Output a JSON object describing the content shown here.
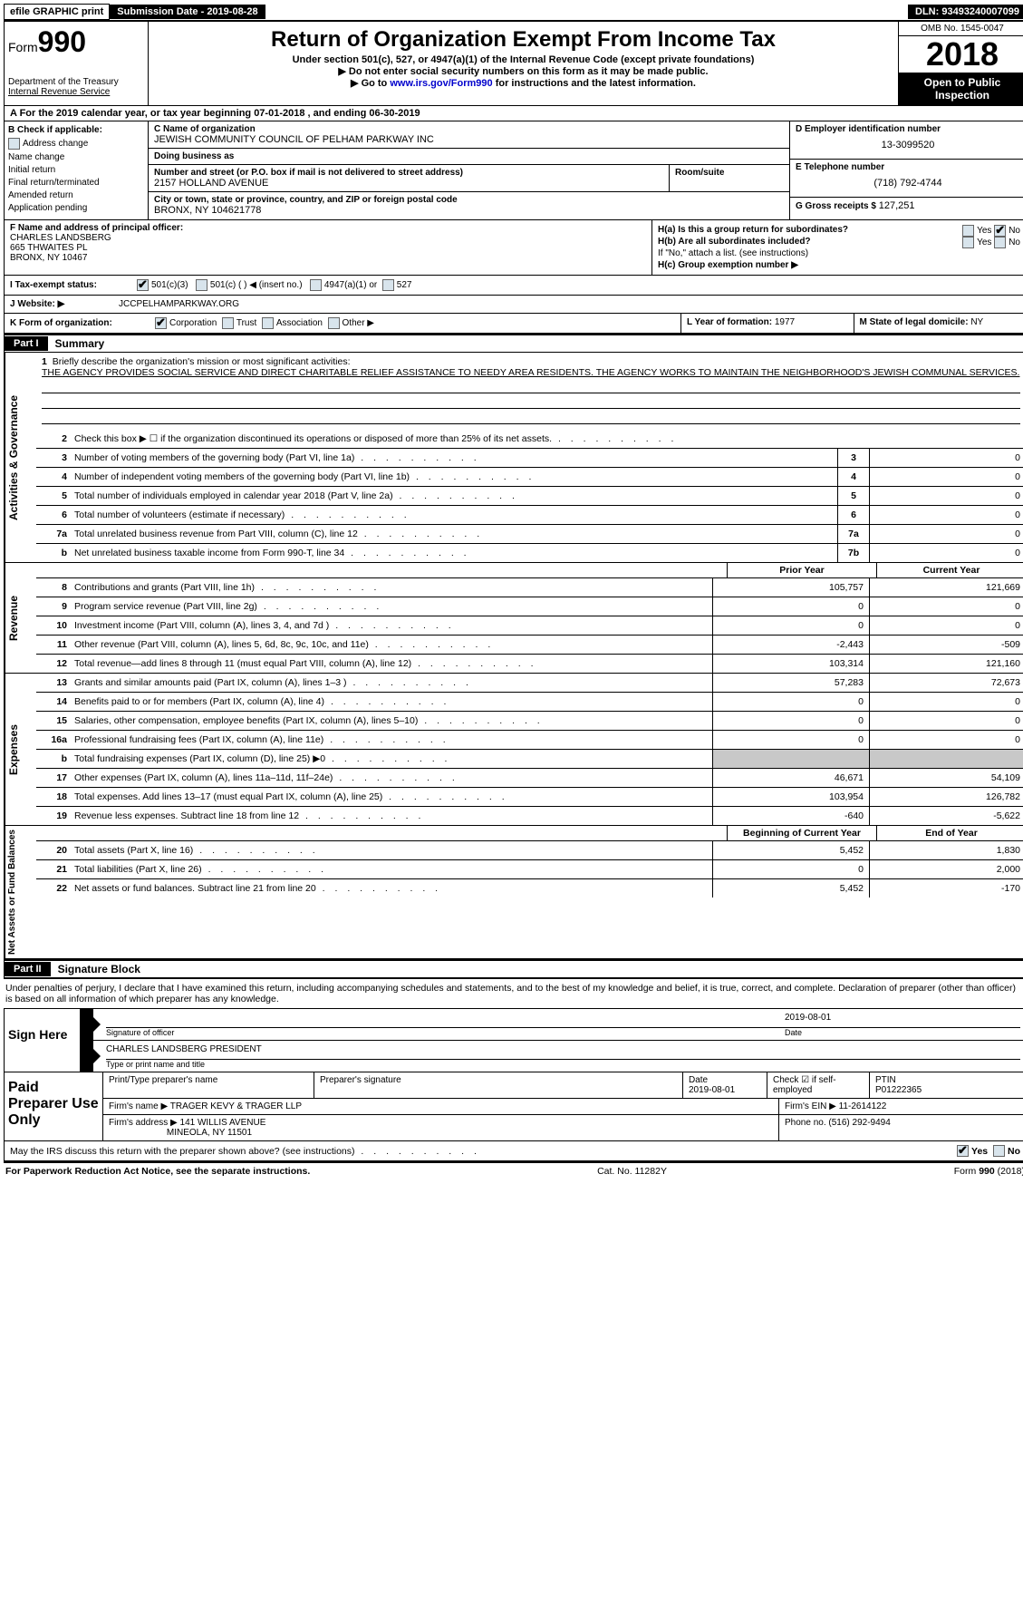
{
  "top": {
    "efile": "efile GRAPHIC print",
    "submission": "Submission Date - 2019-08-28",
    "dln": "DLN: 93493240007099"
  },
  "header": {
    "form_prefix": "Form",
    "form_num": "990",
    "dept": "Department of the Treasury",
    "irs": "Internal Revenue Service",
    "title": "Return of Organization Exempt From Income Tax",
    "sub1": "Under section 501(c), 527, or 4947(a)(1) of the Internal Revenue Code (except private foundations)",
    "sub2": "▶ Do not enter social security numbers on this form as it may be made public.",
    "sub3_pre": "▶ Go to ",
    "sub3_link": "www.irs.gov/Form990",
    "sub3_post": " for instructions and the latest information.",
    "omb": "OMB No. 1545-0047",
    "year": "2018",
    "open": "Open to Public Inspection"
  },
  "row_a": "A   For the 2019 calendar year, or tax year beginning 07-01-2018      , and ending 06-30-2019",
  "box_b": {
    "label": "B Check if applicable:",
    "items": [
      "Address change",
      "Name change",
      "Initial return",
      "Final return/terminated",
      "Amended return",
      "Application pending"
    ]
  },
  "box_c": {
    "name_lbl": "C Name of organization",
    "name": "JEWISH COMMUNITY COUNCIL OF PELHAM PARKWAY INC",
    "dba_lbl": "Doing business as",
    "dba": "",
    "addr_lbl": "Number and street (or P.O. box if mail is not delivered to street address)",
    "addr": "2157 HOLLAND AVENUE",
    "room_lbl": "Room/suite",
    "city_lbl": "City or town, state or province, country, and ZIP or foreign postal code",
    "city": "BRONX, NY  104621778"
  },
  "box_d": {
    "lbl": "D Employer identification number",
    "val": "13-3099520"
  },
  "box_e": {
    "lbl": "E Telephone number",
    "val": "(718) 792-4744"
  },
  "box_g": {
    "lbl": "G Gross receipts $",
    "val": "127,251"
  },
  "box_f": {
    "lbl": "F  Name and address of principal officer:",
    "name": "CHARLES LANDSBERG",
    "addr1": "665 THWAITES PL",
    "addr2": "BRONX, NY  10467"
  },
  "box_h": {
    "ha": "H(a)   Is this a group return for subordinates?",
    "hb": "H(b)   Are all subordinates included?",
    "hb_note": "If \"No,\" attach a list. (see instructions)",
    "hc": "H(c)   Group exemption number ▶",
    "yes": "Yes",
    "no": "No"
  },
  "tax_status": {
    "lbl": "I    Tax-exempt status:",
    "o1": "501(c)(3)",
    "o2": "501(c) (  ) ◀ (insert no.)",
    "o3": "4947(a)(1) or",
    "o4": "527"
  },
  "website": {
    "lbl": "J   Website: ▶",
    "val": "JCCPELHAMPARKWAY.ORG"
  },
  "korg": {
    "lbl": "K Form of organization:",
    "o1": "Corporation",
    "o2": "Trust",
    "o3": "Association",
    "o4": "Other ▶"
  },
  "box_l": {
    "lbl": "L Year of formation:",
    "val": "1977"
  },
  "box_m": {
    "lbl": "M State of legal domicile:",
    "val": "NY"
  },
  "part1": {
    "tab": "Part I",
    "title": "Summary"
  },
  "mission": {
    "num": "1",
    "lbl": "Briefly describe the organization's mission or most significant activities:",
    "text": "THE AGENCY PROVIDES SOCIAL SERVICE AND DIRECT CHARITABLE RELIEF ASSISTANCE TO NEEDY AREA RESIDENTS. THE AGENCY WORKS TO MAINTAIN THE NEIGHBORHOOD'S JEWISH COMMUNAL SERVICES."
  },
  "side": {
    "activities": "Activities & Governance",
    "revenue": "Revenue",
    "expenses": "Expenses",
    "netassets": "Net Assets or Fund Balances"
  },
  "gov_lines": [
    {
      "n": "2",
      "t": "Check this box ▶ ☐  if the organization discontinued its operations or disposed of more than 25% of its net assets."
    },
    {
      "n": "3",
      "t": "Number of voting members of the governing body (Part VI, line 1a)",
      "box": "3",
      "v": "0"
    },
    {
      "n": "4",
      "t": "Number of independent voting members of the governing body (Part VI, line 1b)",
      "box": "4",
      "v": "0"
    },
    {
      "n": "5",
      "t": "Total number of individuals employed in calendar year 2018 (Part V, line 2a)",
      "box": "5",
      "v": "0"
    },
    {
      "n": "6",
      "t": "Total number of volunteers (estimate if necessary)",
      "box": "6",
      "v": "0"
    },
    {
      "n": "7a",
      "t": "Total unrelated business revenue from Part VIII, column (C), line 12",
      "box": "7a",
      "v": "0"
    },
    {
      "n": "b",
      "t": "Net unrelated business taxable income from Form 990-T, line 34",
      "box": "7b",
      "v": "0"
    }
  ],
  "col_hdrs": {
    "prior": "Prior Year",
    "current": "Current Year",
    "beg": "Beginning of Current Year",
    "end": "End of Year"
  },
  "rev_lines": [
    {
      "n": "8",
      "t": "Contributions and grants (Part VIII, line 1h)",
      "p": "105,757",
      "c": "121,669"
    },
    {
      "n": "9",
      "t": "Program service revenue (Part VIII, line 2g)",
      "p": "0",
      "c": "0"
    },
    {
      "n": "10",
      "t": "Investment income (Part VIII, column (A), lines 3, 4, and 7d )",
      "p": "0",
      "c": "0"
    },
    {
      "n": "11",
      "t": "Other revenue (Part VIII, column (A), lines 5, 6d, 8c, 9c, 10c, and 11e)",
      "p": "-2,443",
      "c": "-509"
    },
    {
      "n": "12",
      "t": "Total revenue—add lines 8 through 11 (must equal Part VIII, column (A), line 12)",
      "p": "103,314",
      "c": "121,160"
    }
  ],
  "exp_lines": [
    {
      "n": "13",
      "t": "Grants and similar amounts paid (Part IX, column (A), lines 1–3 )",
      "p": "57,283",
      "c": "72,673"
    },
    {
      "n": "14",
      "t": "Benefits paid to or for members (Part IX, column (A), line 4)",
      "p": "0",
      "c": "0"
    },
    {
      "n": "15",
      "t": "Salaries, other compensation, employee benefits (Part IX, column (A), lines 5–10)",
      "p": "0",
      "c": "0"
    },
    {
      "n": "16a",
      "t": "Professional fundraising fees (Part IX, column (A), line 11e)",
      "p": "0",
      "c": "0"
    },
    {
      "n": "b",
      "t": "Total fundraising expenses (Part IX, column (D), line 25) ▶0",
      "shade": true
    },
    {
      "n": "17",
      "t": "Other expenses (Part IX, column (A), lines 11a–11d, 11f–24e)",
      "p": "46,671",
      "c": "54,109"
    },
    {
      "n": "18",
      "t": "Total expenses. Add lines 13–17 (must equal Part IX, column (A), line 25)",
      "p": "103,954",
      "c": "126,782"
    },
    {
      "n": "19",
      "t": "Revenue less expenses. Subtract line 18 from line 12",
      "p": "-640",
      "c": "-5,622"
    }
  ],
  "net_lines": [
    {
      "n": "20",
      "t": "Total assets (Part X, line 16)",
      "p": "5,452",
      "c": "1,830"
    },
    {
      "n": "21",
      "t": "Total liabilities (Part X, line 26)",
      "p": "0",
      "c": "2,000"
    },
    {
      "n": "22",
      "t": "Net assets or fund balances. Subtract line 21 from line 20",
      "p": "5,452",
      "c": "-170"
    }
  ],
  "part2": {
    "tab": "Part II",
    "title": "Signature Block"
  },
  "sig_text": "Under penalties of perjury, I declare that I have examined this return, including accompanying schedules and statements, and to the best of my knowledge and belief, it is true, correct, and complete. Declaration of preparer (other than officer) is based on all information of which preparer has any knowledge.",
  "sign": {
    "here": "Sign Here",
    "sig_lbl": "Signature of officer",
    "date_lbl": "Date",
    "date": "2019-08-01",
    "name": "CHARLES LANDSBERG  PRESIDENT",
    "name_lbl": "Type or print name and title"
  },
  "prep": {
    "title": "Paid Preparer Use Only",
    "r1": {
      "c1_lbl": "Print/Type preparer's name",
      "c2_lbl": "Preparer's signature",
      "c3_lbl": "Date",
      "c3": "2019-08-01",
      "c4_lbl": "Check ☑ if self-employed",
      "c5_lbl": "PTIN",
      "c5": "P01222365"
    },
    "r2": {
      "lbl": "Firm's name    ▶",
      "val": "TRAGER KEVY & TRAGER LLP",
      "ein_lbl": "Firm's EIN ▶",
      "ein": "11-2614122"
    },
    "r3": {
      "lbl": "Firm's address ▶",
      "val1": "141 WILLIS AVENUE",
      "val2": "MINEOLA, NY  11501",
      "ph_lbl": "Phone no.",
      "ph": "(516) 292-9494"
    }
  },
  "discuss": {
    "t": "May the IRS discuss this return with the preparer shown above? (see instructions)",
    "yes": "Yes",
    "no": "No"
  },
  "footer": {
    "left": "For Paperwork Reduction Act Notice, see the separate instructions.",
    "mid": "Cat. No. 11282Y",
    "right_pre": "Form ",
    "right_b": "990",
    "right_post": " (2018)"
  }
}
